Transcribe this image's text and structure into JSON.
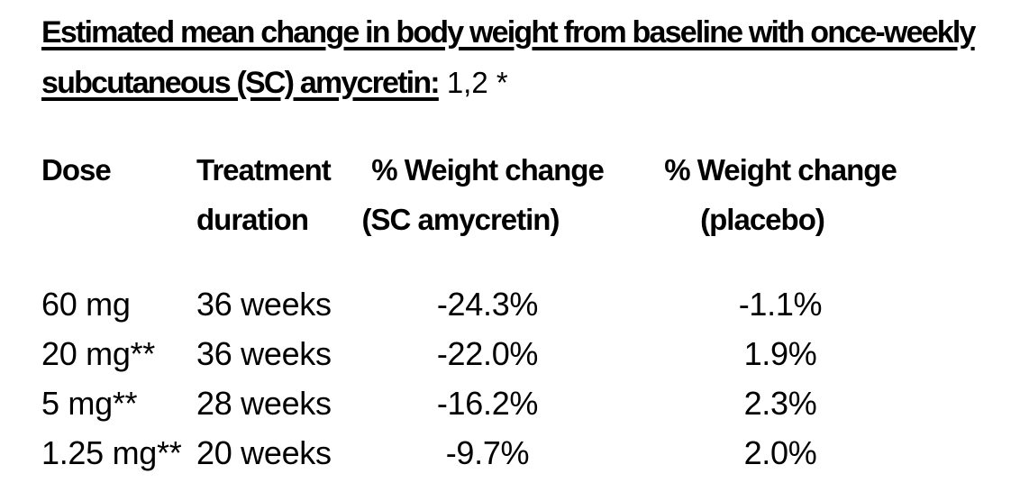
{
  "page": {
    "background_color": "#ffffff",
    "text_color": "#000000"
  },
  "title": {
    "line1": "Estimated mean change in body weight from baseline with once-weekly",
    "line2": "subcutaneous (SC) amycretin:",
    "reference_marks": "1,2 *"
  },
  "table": {
    "columns": [
      {
        "id": "dose",
        "line1": "Dose",
        "line2": ""
      },
      {
        "id": "duration",
        "line1": "Treatment",
        "line2": "duration"
      },
      {
        "id": "amycretin",
        "line1": "% Weight change",
        "line2": "(SC amycretin)"
      },
      {
        "id": "placebo",
        "line1": "% Weight change",
        "line2": "(placebo)"
      }
    ],
    "rows": [
      {
        "dose": "60 mg",
        "duration": "36 weeks",
        "amycretin": "-24.3%",
        "placebo": "-1.1%"
      },
      {
        "dose": "20 mg**",
        "duration": "36 weeks",
        "amycretin": "-22.0%",
        "placebo": "1.9%"
      },
      {
        "dose": "5 mg**",
        "duration": "28 weeks",
        "amycretin": "-16.2%",
        "placebo": "2.3%"
      },
      {
        "dose": "1.25 mg**",
        "duration": "20 weeks",
        "amycretin": "-9.7%",
        "placebo": "2.0%"
      }
    ]
  }
}
